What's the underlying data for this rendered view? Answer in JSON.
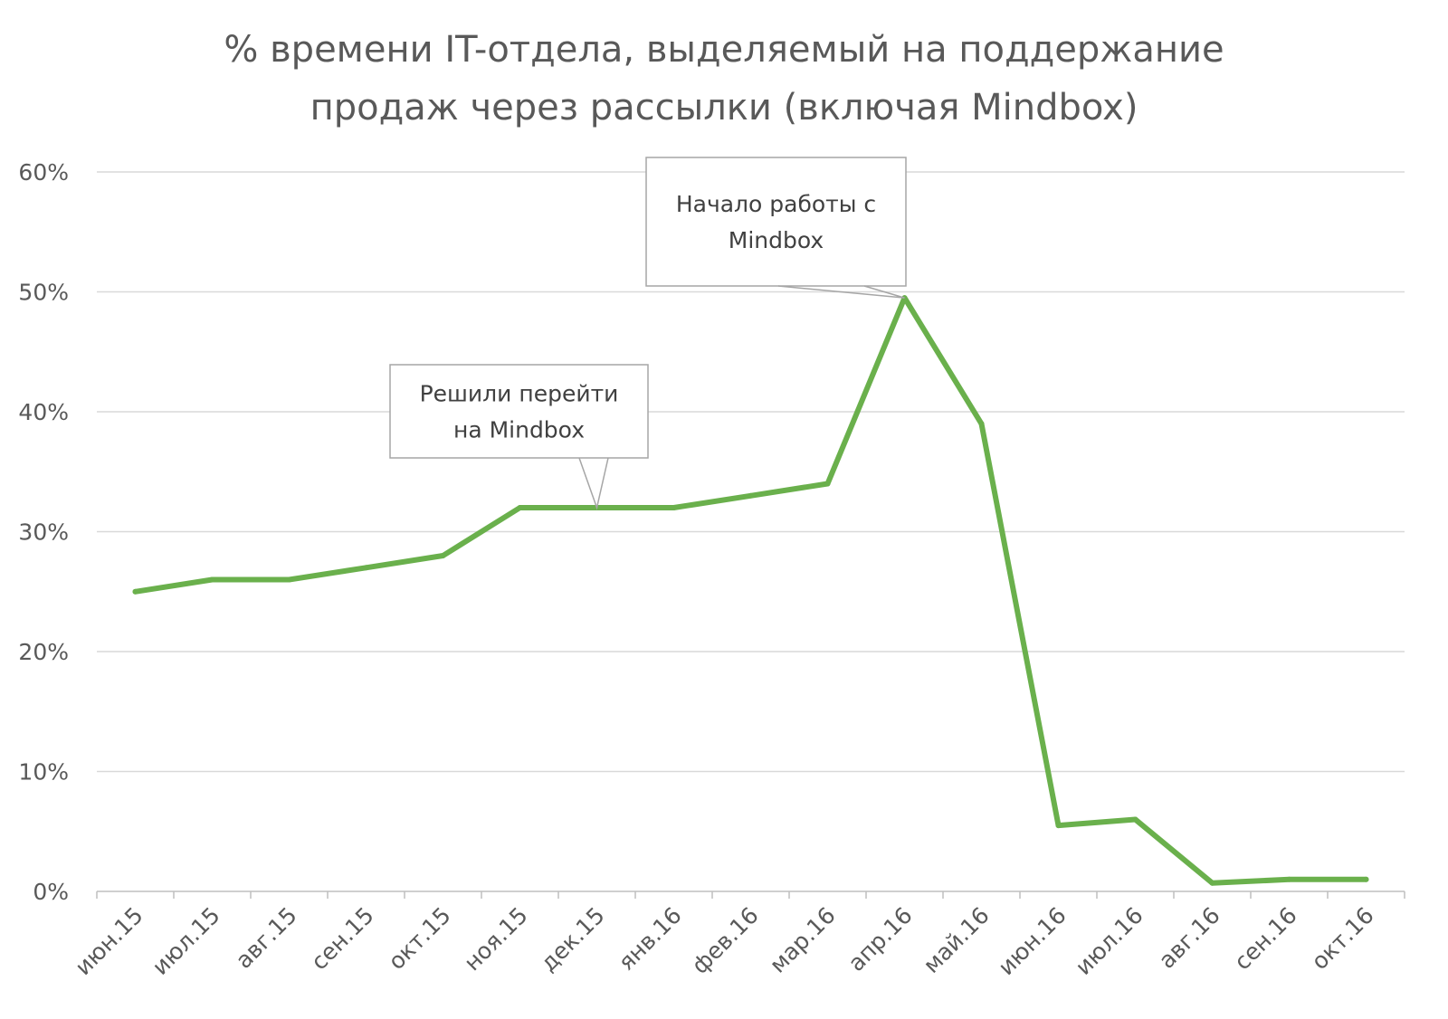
{
  "chart_data": {
    "type": "line",
    "title": [
      "% времени IT-отдела, выделяемый на поддержание",
      "продаж через рассылки (включая Mindbox)"
    ],
    "categories": [
      "июн.15",
      "июл.15",
      "авг.15",
      "сен.15",
      "окт.15",
      "ноя.15",
      "дек.15",
      "янв.16",
      "фев.16",
      "мар.16",
      "апр.16",
      "май.16",
      "июн.16",
      "июл.16",
      "авг.16",
      "сен.16",
      "окт.16"
    ],
    "series": [
      {
        "values": [
          25,
          26,
          26,
          27,
          28,
          32,
          32,
          32,
          33,
          34,
          49.5,
          39,
          5.5,
          6,
          0.7,
          1,
          1
        ]
      }
    ],
    "y_ticks": [
      "0%",
      "10%",
      "20%",
      "30%",
      "40%",
      "50%",
      "60%"
    ],
    "y_tick_values": [
      0,
      10,
      20,
      30,
      40,
      50,
      60
    ],
    "ylim": [
      0,
      60
    ],
    "grid": true,
    "line_color": "#6ab04c",
    "annotations": [
      {
        "lines": [
          "Решили перейти",
          "на Mindbox"
        ],
        "category": "дек.15",
        "value": 32
      },
      {
        "lines": [
          "Начало работы с",
          "Mindbox"
        ],
        "category": "апр.16",
        "value": 49.5
      }
    ]
  }
}
